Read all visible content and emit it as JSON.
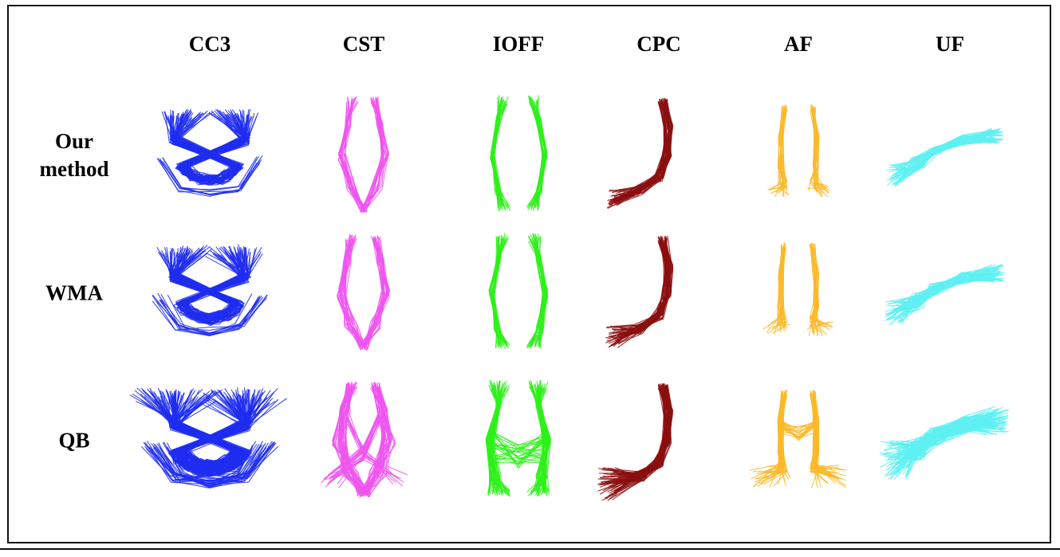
{
  "columns": [
    {
      "label": "CC3",
      "key": "cc3",
      "color": "#1f2df0"
    },
    {
      "label": "CST",
      "key": "cst",
      "color": "#ee55ee"
    },
    {
      "label": "IOFF",
      "key": "ioff",
      "color": "#2ef01a"
    },
    {
      "label": "CPC",
      "key": "cpc",
      "color": "#8b0f0f"
    },
    {
      "label": "AF",
      "key": "af",
      "color": "#fbb928"
    },
    {
      "label": "UF",
      "key": "uf",
      "color": "#5ef0f2"
    }
  ],
  "rows": [
    {
      "label_lines": [
        "Our",
        "method"
      ],
      "key": "our-method",
      "density": 1.0
    },
    {
      "label_lines": [
        "WMA"
      ],
      "key": "wma",
      "density": 1.15
    },
    {
      "label_lines": [
        "QB"
      ],
      "key": "qb",
      "density": 1.8
    }
  ]
}
